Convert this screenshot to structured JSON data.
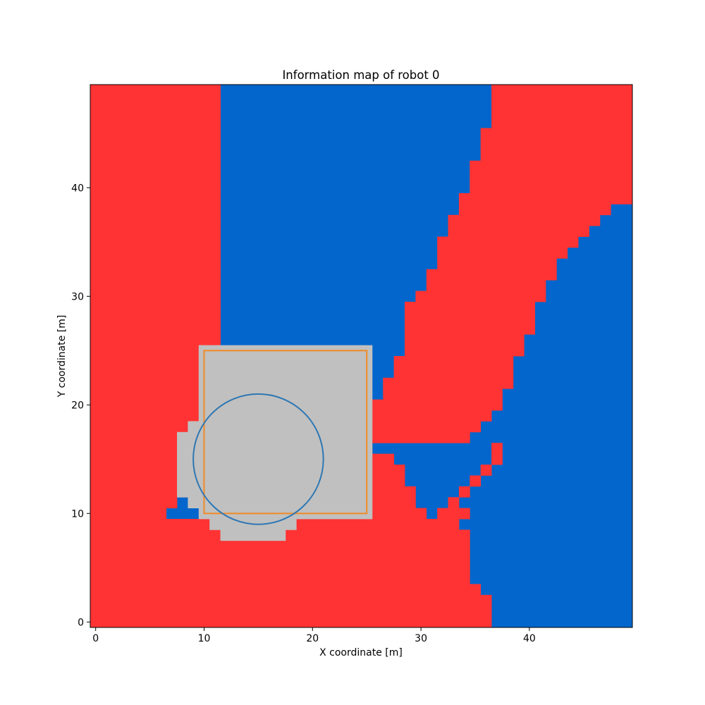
{
  "chart_data": {
    "type": "heatmap",
    "title": "Information map of robot 0",
    "xlabel": "X coordinate [m]",
    "ylabel": "Y coordinate [m]",
    "xlim": [
      -0.5,
      49.5
    ],
    "ylim": [
      -0.5,
      49.5
    ],
    "xticks": [
      0,
      10,
      20,
      30,
      40
    ],
    "yticks": [
      0,
      10,
      20,
      30,
      40
    ],
    "grid": false,
    "legend": "none",
    "colors": {
      "blue": "#0266cc",
      "red": "#ff3333",
      "gray": "#c0c0c0",
      "circle": "#2e77b3",
      "rectangle": "#f08a28"
    },
    "cells": {
      "blue_background": "all cells not listed as red or gray",
      "red_rows": [
        [
          [
            0,
            36
          ]
        ],
        [
          [
            0,
            36
          ]
        ],
        [
          [
            0,
            36
          ]
        ],
        [
          [
            0,
            35
          ]
        ],
        [
          [
            0,
            34
          ]
        ],
        [
          [
            0,
            34
          ]
        ],
        [
          [
            0,
            34
          ]
        ],
        [
          [
            0,
            34
          ]
        ],
        [
          [
            0,
            14
          ],
          [
            18,
            34
          ]
        ],
        [
          [
            0,
            14
          ],
          [
            18,
            33
          ]
        ],
        [
          [
            0,
            6
          ],
          [
            18,
            30
          ],
          [
            32,
            34
          ]
        ],
        [
          [
            0,
            7
          ],
          [
            18,
            29
          ],
          [
            33,
            33
          ]
        ],
        [
          [
            0,
            8
          ],
          [
            19,
            29
          ],
          [
            34,
            34
          ]
        ],
        [
          [
            0,
            9
          ],
          [
            19,
            28
          ],
          [
            35,
            35
          ]
        ],
        [
          [
            0,
            10
          ],
          [
            20,
            28
          ],
          [
            36,
            36
          ]
        ],
        [
          [
            0,
            11
          ],
          [
            21,
            27
          ],
          [
            37,
            37
          ]
        ],
        [
          [
            0,
            11
          ],
          [
            23,
            25
          ],
          [
            37,
            37
          ]
        ],
        [
          [
            0,
            11
          ],
          [
            26,
            34
          ]
        ],
        [
          [
            0,
            11
          ],
          [
            26,
            35
          ]
        ],
        [
          [
            0,
            11
          ],
          [
            26,
            36
          ]
        ],
        [
          [
            0,
            11
          ],
          [
            26,
            37
          ]
        ],
        [
          [
            0,
            11
          ],
          [
            27,
            37
          ]
        ],
        [
          [
            0,
            11
          ],
          [
            27,
            38
          ]
        ],
        [
          [
            0,
            11
          ],
          [
            28,
            38
          ]
        ],
        [
          [
            0,
            11
          ],
          [
            28,
            38
          ]
        ],
        [
          [
            0,
            11
          ],
          [
            29,
            39
          ]
        ],
        [
          [
            0,
            11
          ],
          [
            29,
            39
          ]
        ],
        [
          [
            0,
            11
          ],
          [
            29,
            40
          ]
        ],
        [
          [
            0,
            11
          ],
          [
            29,
            40
          ]
        ],
        [
          [
            0,
            11
          ],
          [
            29,
            40
          ]
        ],
        [
          [
            0,
            11
          ],
          [
            30,
            41
          ]
        ],
        [
          [
            0,
            11
          ],
          [
            31,
            41
          ]
        ],
        [
          [
            0,
            11
          ],
          [
            31,
            42
          ]
        ],
        [
          [
            0,
            11
          ],
          [
            32,
            42
          ]
        ],
        [
          [
            0,
            11
          ],
          [
            32,
            43
          ]
        ],
        [
          [
            0,
            11
          ],
          [
            32,
            44
          ]
        ],
        [
          [
            0,
            11
          ],
          [
            33,
            45
          ]
        ],
        [
          [
            0,
            11
          ],
          [
            33,
            46
          ]
        ],
        [
          [
            0,
            11
          ],
          [
            34,
            47
          ]
        ],
        [
          [
            0,
            11
          ],
          [
            34,
            49
          ]
        ],
        [
          [
            0,
            11
          ],
          [
            35,
            49
          ]
        ],
        [
          [
            0,
            11
          ],
          [
            35,
            49
          ]
        ],
        [
          [
            0,
            11
          ],
          [
            35,
            49
          ]
        ],
        [
          [
            0,
            11
          ],
          [
            36,
            49
          ]
        ],
        [
          [
            0,
            11
          ],
          [
            36,
            49
          ]
        ],
        [
          [
            0,
            11
          ],
          [
            36,
            49
          ]
        ],
        [
          [
            0,
            11
          ],
          [
            37,
            49
          ]
        ],
        [
          [
            0,
            11
          ],
          [
            37,
            49
          ]
        ],
        [
          [
            0,
            11
          ],
          [
            37,
            49
          ]
        ],
        [
          [
            0,
            11
          ],
          [
            37,
            49
          ]
        ]
      ],
      "gray_rows": {
        "8": [
          [
            12,
            17
          ]
        ],
        "9": [
          [
            11,
            18
          ]
        ],
        "10": [
          [
            10,
            25
          ]
        ],
        "11": [
          [
            9,
            25
          ]
        ],
        "12": [
          [
            8,
            25
          ]
        ],
        "13": [
          [
            8,
            25
          ]
        ],
        "14": [
          [
            8,
            25
          ]
        ],
        "15": [
          [
            8,
            25
          ]
        ],
        "16": [
          [
            8,
            25
          ]
        ],
        "17": [
          [
            8,
            25
          ]
        ],
        "18": [
          [
            9,
            25
          ]
        ],
        "19": [
          [
            10,
            25
          ]
        ],
        "20": [
          [
            10,
            25
          ]
        ],
        "21": [
          [
            10,
            25
          ]
        ],
        "22": [
          [
            10,
            25
          ]
        ],
        "23": [
          [
            10,
            25
          ]
        ],
        "24": [
          [
            10,
            25
          ]
        ],
        "25": [
          [
            10,
            25
          ]
        ]
      }
    },
    "overlays": {
      "circle": {
        "center": [
          15,
          15
        ],
        "radius": 6
      },
      "rectangle": {
        "x0": 10,
        "y0": 10,
        "x1": 25,
        "y1": 25
      }
    }
  }
}
